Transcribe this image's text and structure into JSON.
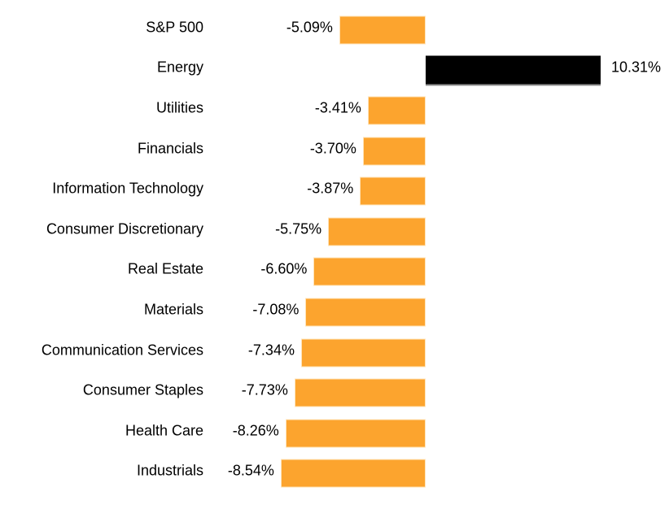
{
  "chart_data": {
    "type": "bar",
    "orientation": "horizontal",
    "title": "",
    "xlabel": "",
    "ylabel": "",
    "legend": "none",
    "grid": false,
    "axis_ticks_visible": false,
    "value_format": "percent, two decimals, shown as data labels beside bars",
    "xlim": [
      -14.3,
      14.3
    ],
    "colors": {
      "negative": "#FCA42E",
      "positive": "#000000",
      "label_text": "#000000",
      "background": "#FFFFFF"
    },
    "categories": [
      "S&P 500",
      "Energy",
      "Utilities",
      "Financials",
      "Information Technology",
      "Consumer Discretionary",
      "Real Estate",
      "Materials",
      "Communication Services",
      "Consumer Staples",
      "Health Care",
      "Industrials"
    ],
    "values": [
      -5.09,
      10.31,
      -3.41,
      -3.7,
      -3.87,
      -5.75,
      -6.6,
      -7.08,
      -7.34,
      -7.73,
      -8.26,
      -8.54
    ],
    "rows": [
      {
        "label": "S&P 500",
        "value": -5.09,
        "value_label": "-5.09%"
      },
      {
        "label": "Energy",
        "value": 10.31,
        "value_label": "10.31%"
      },
      {
        "label": "Utilities",
        "value": -3.41,
        "value_label": "-3.41%"
      },
      {
        "label": "Financials",
        "value": -3.7,
        "value_label": "-3.70%"
      },
      {
        "label": "Information Technology",
        "value": -3.87,
        "value_label": "-3.87%"
      },
      {
        "label": "Consumer Discretionary",
        "value": -5.75,
        "value_label": "-5.75%"
      },
      {
        "label": "Real Estate",
        "value": -6.6,
        "value_label": "-6.60%"
      },
      {
        "label": "Materials",
        "value": -7.08,
        "value_label": "-7.08%"
      },
      {
        "label": "Communication Services",
        "value": -7.34,
        "value_label": "-7.34%"
      },
      {
        "label": "Consumer Staples",
        "value": -7.73,
        "value_label": "-7.73%"
      },
      {
        "label": "Health Care",
        "value": -8.26,
        "value_label": "-8.26%"
      },
      {
        "label": "Industrials",
        "value": -8.54,
        "value_label": "-8.54%"
      }
    ]
  }
}
